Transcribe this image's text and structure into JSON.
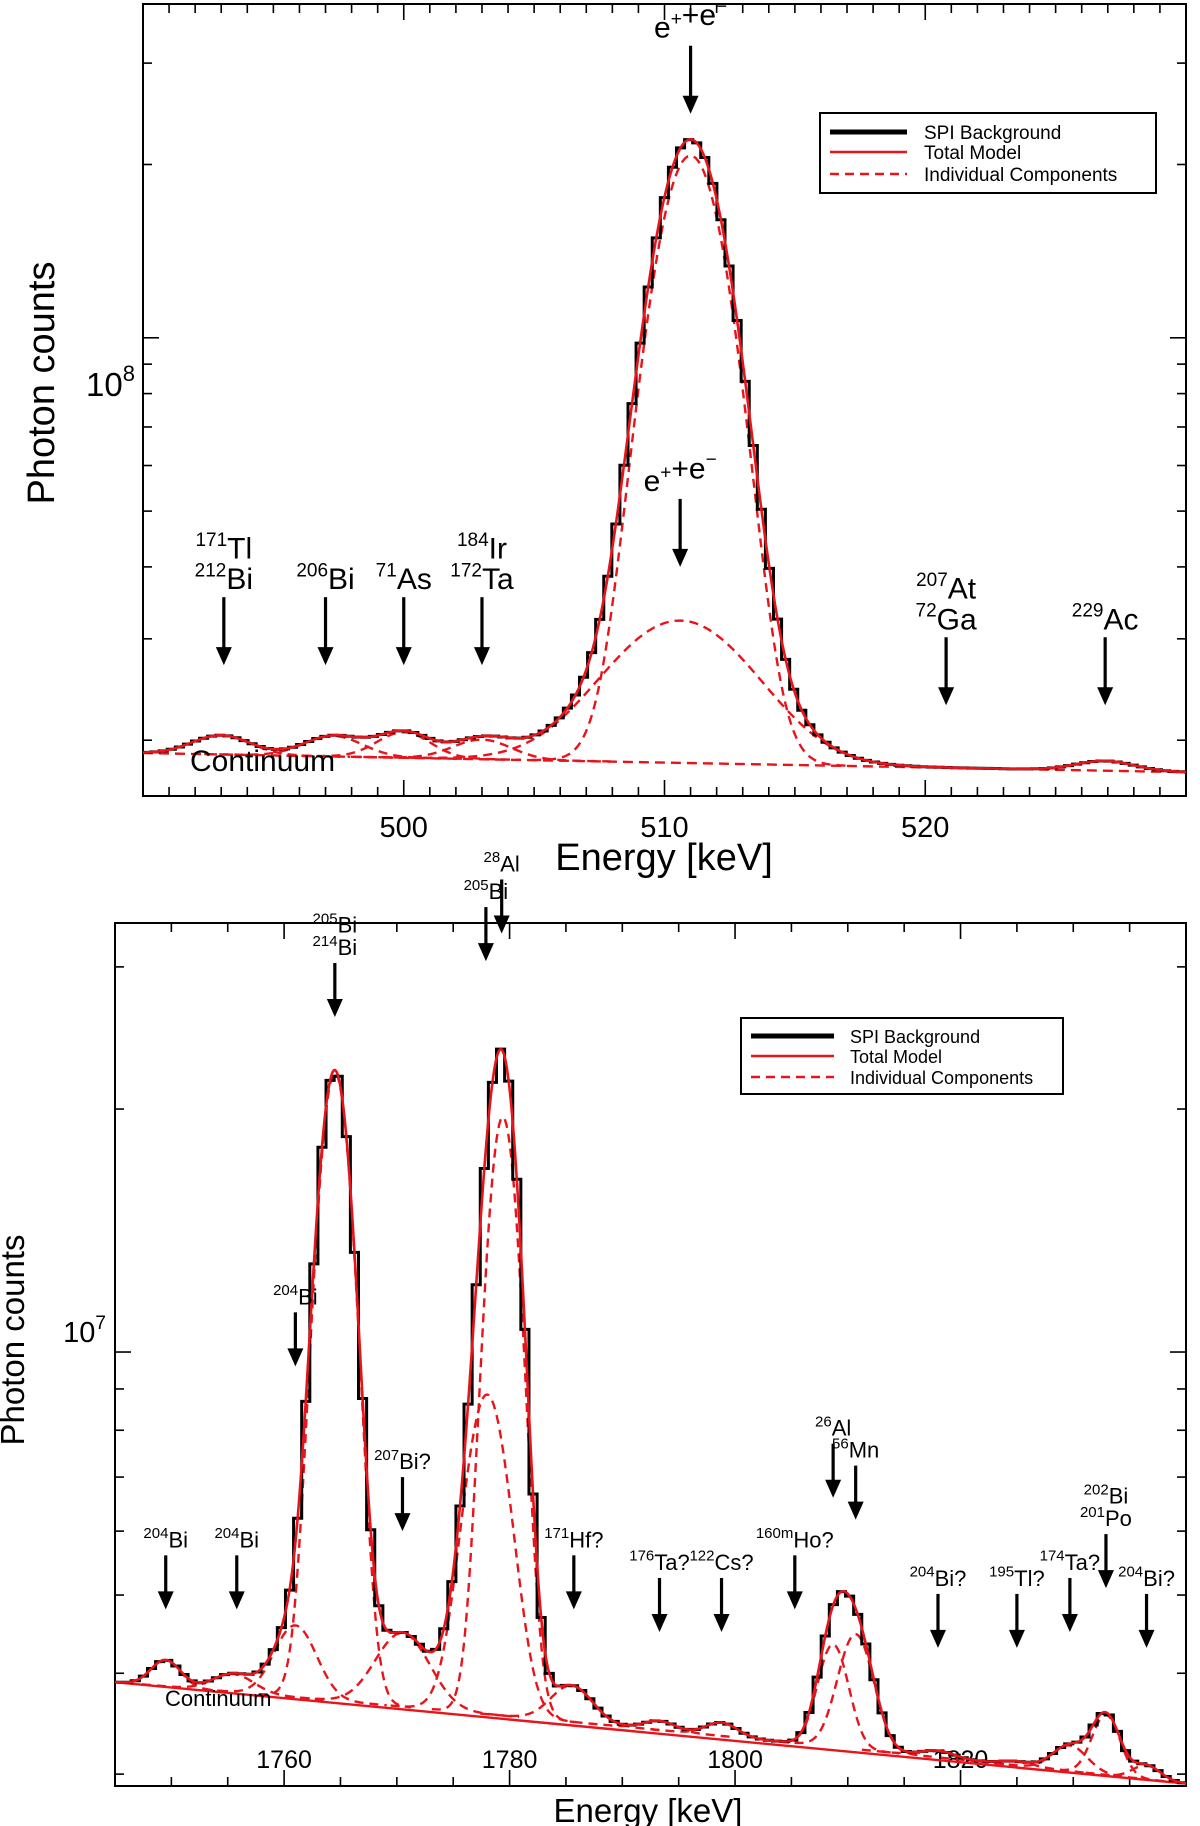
{
  "chart_data": [
    {
      "type": "line",
      "xlabel": "Energy [keV]",
      "ylabel": "Photon counts",
      "ytick_label": {
        "base": "10",
        "exp": "8"
      },
      "x_ticks": [
        "500",
        "510",
        "520"
      ],
      "xlim": [
        490,
        530
      ],
      "ylim": [
        16000000,
        380000000
      ],
      "log_y": true,
      "legend": {
        "position": "top-right",
        "entries": [
          {
            "label": "SPI Background",
            "style": "solid",
            "color": "#000000"
          },
          {
            "label": "Total Model",
            "style": "solid",
            "color": "#e8141b"
          },
          {
            "label": "Individual Components",
            "style": "dashed",
            "color": "#e8141b"
          }
        ]
      },
      "continuum_label": "Continuum",
      "continuum": {
        "x": [
          490,
          530
        ],
        "y": [
          19000000,
          17600000
        ]
      },
      "components": [
        {
          "center": 493.0,
          "sigma": 1.1,
          "amplitude": 1500000
        },
        {
          "center": 497.3,
          "sigma": 1.1,
          "amplitude": 1600000
        },
        {
          "center": 500.0,
          "sigma": 1.0,
          "amplitude": 2000000
        },
        {
          "center": 503.0,
          "sigma": 1.1,
          "amplitude": 1500000
        },
        {
          "center": 511.0,
          "sigma": 1.35,
          "amplitude": 189000000
        },
        {
          "center": 510.6,
          "sigma": 2.7,
          "amplitude": 14000000
        },
        {
          "center": 526.9,
          "sigma": 1.1,
          "amplitude": 700000
        }
      ],
      "annotations": [
        {
          "lines": [
            [
              {
                "sup": "171",
                "t": "Tl"
              }
            ],
            [
              {
                "sup": "212",
                "t": "Bi"
              }
            ]
          ],
          "x": 493.1,
          "y": 27000000
        },
        {
          "lines": [
            [
              {
                "sup": "206",
                "t": "Bi"
              }
            ]
          ],
          "x": 497.0,
          "y": 27000000
        },
        {
          "lines": [
            [
              {
                "sup": "71",
                "t": "As"
              }
            ]
          ],
          "x": 500.0,
          "y": 27000000
        },
        {
          "lines": [
            [
              {
                "sup": "184",
                "t": "Ir"
              }
            ],
            [
              {
                "sup": "172",
                "t": "Ta"
              }
            ]
          ],
          "x": 503.0,
          "y": 27000000
        },
        {
          "lines": [
            [
              {
                "t": "e"
              },
              {
                "sup": "+"
              },
              {
                "t": "+e"
              },
              {
                "sup": "−"
              }
            ]
          ],
          "x": 511.0,
          "y": 245000000
        },
        {
          "lines": [
            [
              {
                "t": "e"
              },
              {
                "sup": "+"
              },
              {
                "t": "+e"
              },
              {
                "sup": "−"
              }
            ]
          ],
          "x": 510.6,
          "y": 40000000
        },
        {
          "lines": [
            [
              {
                "sup": "207",
                "t": "At"
              }
            ],
            [
              {
                "sup": "72",
                "t": "Ga"
              }
            ]
          ],
          "x": 520.8,
          "y": 23000000
        },
        {
          "lines": [
            [
              {
                "sup": "229",
                "t": "Ac"
              }
            ]
          ],
          "x": 526.9,
          "y": 23000000
        }
      ]
    },
    {
      "type": "line",
      "xlabel": "Energy [keV]",
      "ylabel": "Photon counts",
      "ytick_label": {
        "base": "10",
        "exp": "7"
      },
      "x_ticks": [
        "1760",
        "1780",
        "1800",
        "1820"
      ],
      "xlim": [
        1745,
        1840
      ],
      "ylim": [
        2900000,
        34000000
      ],
      "log_y": true,
      "legend": {
        "position": "top-right",
        "entries": [
          {
            "label": "SPI Background",
            "style": "solid",
            "color": "#000000"
          },
          {
            "label": "Total Model",
            "style": "solid",
            "color": "#e8141b"
          },
          {
            "label": "Individual Components",
            "style": "dashed",
            "color": "#e8141b"
          }
        ]
      },
      "continuum_label": "Continuum",
      "continuum": {
        "x": [
          1745,
          1840
        ],
        "y": [
          3900000,
          2920000
        ]
      },
      "components": [
        {
          "center": 1749.5,
          "sigma": 1.3,
          "amplitude": 300000
        },
        {
          "center": 1755.5,
          "sigma": 1.8,
          "amplitude": 200000
        },
        {
          "center": 1761.0,
          "sigma": 1.8,
          "amplitude": 850000
        },
        {
          "center": 1764.5,
          "sigma": 1.5,
          "amplitude": 18500000
        },
        {
          "center": 1770.5,
          "sigma": 2.3,
          "amplitude": 850000
        },
        {
          "center": 1778.0,
          "sigma": 1.9,
          "amplitude": 5300000
        },
        {
          "center": 1779.4,
          "sigma": 1.4,
          "amplitude": 16000000
        },
        {
          "center": 1785.5,
          "sigma": 1.8,
          "amplitude": 380000
        },
        {
          "center": 1793.3,
          "sigma": 1.4,
          "amplitude": 90000
        },
        {
          "center": 1798.8,
          "sigma": 1.4,
          "amplitude": 130000
        },
        {
          "center": 1808.7,
          "sigma": 1.3,
          "amplitude": 1100000
        },
        {
          "center": 1810.7,
          "sigma": 1.5,
          "amplitude": 1250000
        },
        {
          "center": 1818.0,
          "sigma": 1.5,
          "amplitude": 60000
        },
        {
          "center": 1825.0,
          "sigma": 1.5,
          "amplitude": 35000
        },
        {
          "center": 1829.7,
          "sigma": 1.5,
          "amplitude": 230000
        },
        {
          "center": 1832.9,
          "sigma": 1.2,
          "amplitude": 560000
        },
        {
          "center": 1836.5,
          "sigma": 1.2,
          "amplitude": 120000
        }
      ],
      "annotations": [
        {
          "lines": [
            [
              {
                "sup": "204",
                "t": "Bi"
              }
            ]
          ],
          "x": 1749.5,
          "y": 4800000
        },
        {
          "lines": [
            [
              {
                "sup": "204",
                "t": "Bi"
              }
            ]
          ],
          "x": 1755.8,
          "y": 4800000
        },
        {
          "lines": [
            [
              {
                "sup": "204",
                "t": "Bi"
              }
            ]
          ],
          "x": 1761.0,
          "y": 9600000
        },
        {
          "lines": [
            [
              {
                "sup": "205",
                "t": "Bi"
              }
            ],
            [
              {
                "sup": "214",
                "t": "Bi"
              }
            ]
          ],
          "x": 1764.5,
          "y": 26000000
        },
        {
          "lines": [
            [
              {
                "sup": "207",
                "t": "Bi?"
              }
            ]
          ],
          "x": 1770.5,
          "y": 6000000
        },
        {
          "lines": [
            [
              {
                "sup": "205",
                "t": "Bi"
              }
            ]
          ],
          "x": 1777.9,
          "y": 30500000
        },
        {
          "lines": [
            [
              {
                "sup": "28",
                "t": "Al"
              }
            ]
          ],
          "x": 1779.3,
          "y": 33000000
        },
        {
          "lines": [
            [
              {
                "sup": "171",
                "t": "Hf?"
              }
            ]
          ],
          "x": 1785.7,
          "y": 4800000
        },
        {
          "lines": [
            [
              {
                "sup": "176",
                "t": "Ta?"
              }
            ]
          ],
          "x": 1793.3,
          "y": 4500000
        },
        {
          "lines": [
            [
              {
                "sup": "122",
                "t": "Cs?"
              }
            ]
          ],
          "x": 1798.8,
          "y": 4500000
        },
        {
          "lines": [
            [
              {
                "sup": "160m",
                "t": "Ho?"
              }
            ]
          ],
          "x": 1805.3,
          "y": 4800000
        },
        {
          "lines": [
            [
              {
                "sup": "26",
                "t": "Al"
              }
            ]
          ],
          "x": 1808.7,
          "y": 6600000
        },
        {
          "lines": [
            [
              {
                "sup": "56",
                "t": "Mn"
              }
            ]
          ],
          "x": 1810.7,
          "y": 6200000
        },
        {
          "lines": [
            [
              {
                "sup": "204",
                "t": "Bi?"
              }
            ]
          ],
          "x": 1818.0,
          "y": 4300000
        },
        {
          "lines": [
            [
              {
                "sup": "195",
                "t": "Tl?"
              }
            ]
          ],
          "x": 1825.0,
          "y": 4300000
        },
        {
          "lines": [
            [
              {
                "sup": "174",
                "t": "Ta?"
              }
            ]
          ],
          "x": 1829.7,
          "y": 4500000
        },
        {
          "lines": [
            [
              {
                "sup": "202",
                "t": "Bi"
              }
            ],
            [
              {
                "sup": "201",
                "t": "Po"
              }
            ]
          ],
          "x": 1832.9,
          "y": 5100000
        },
        {
          "lines": [
            [
              {
                "sup": "204",
                "t": "Bi?"
              }
            ]
          ],
          "x": 1836.5,
          "y": 4300000
        }
      ]
    }
  ]
}
